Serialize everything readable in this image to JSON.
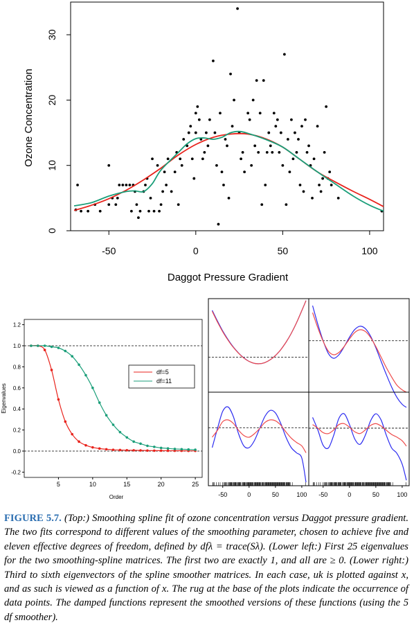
{
  "chart_data": [
    {
      "type": "scatter",
      "xlabel": "Daggot Pressure Gradient",
      "ylabel": "Ozone Concentration",
      "xlim": [
        -72,
        108
      ],
      "ylim": [
        0,
        35
      ],
      "xticks": [
        "-50",
        "0",
        "50",
        "100"
      ],
      "yticks": [
        "0",
        "10",
        "20",
        "30"
      ],
      "points": [
        [
          -69,
          3.2
        ],
        [
          -68,
          7
        ],
        [
          -66,
          3
        ],
        [
          -62,
          3
        ],
        [
          -58,
          4
        ],
        [
          -55,
          3
        ],
        [
          -50,
          4
        ],
        [
          -50,
          10
        ],
        [
          -48,
          5
        ],
        [
          -46,
          4
        ],
        [
          -45,
          5
        ],
        [
          -44,
          7
        ],
        [
          -42,
          7
        ],
        [
          -40,
          7
        ],
        [
          -38,
          7
        ],
        [
          -37,
          3
        ],
        [
          -36,
          7
        ],
        [
          -35,
          6
        ],
        [
          -34,
          4
        ],
        [
          -33,
          2
        ],
        [
          -32,
          3
        ],
        [
          -30,
          6
        ],
        [
          -29,
          7
        ],
        [
          -28,
          8
        ],
        [
          -27,
          3
        ],
        [
          -26,
          5
        ],
        [
          -25,
          11
        ],
        [
          -24,
          3
        ],
        [
          -22,
          10
        ],
        [
          -21,
          3
        ],
        [
          -20,
          4
        ],
        [
          -19,
          6
        ],
        [
          -18,
          9
        ],
        [
          -17,
          7
        ],
        [
          -16,
          11
        ],
        [
          -14,
          6
        ],
        [
          -12,
          9
        ],
        [
          -11,
          12
        ],
        [
          -10,
          4
        ],
        [
          -9,
          11
        ],
        [
          -8,
          10
        ],
        [
          -7,
          14
        ],
        [
          -5,
          13
        ],
        [
          -4,
          15
        ],
        [
          -3,
          16
        ],
        [
          -2,
          11
        ],
        [
          -1,
          8
        ],
        [
          0,
          15
        ],
        [
          0,
          18
        ],
        [
          1,
          19
        ],
        [
          2,
          17
        ],
        [
          3,
          14
        ],
        [
          4,
          11
        ],
        [
          5,
          12
        ],
        [
          6,
          15
        ],
        [
          7,
          13
        ],
        [
          8,
          17
        ],
        [
          10,
          26
        ],
        [
          11,
          15
        ],
        [
          12,
          10
        ],
        [
          13,
          1
        ],
        [
          14,
          18
        ],
        [
          15,
          9
        ],
        [
          16,
          7
        ],
        [
          17,
          14
        ],
        [
          18,
          13
        ],
        [
          19,
          5
        ],
        [
          20,
          24
        ],
        [
          21,
          16
        ],
        [
          22,
          20
        ],
        [
          24,
          34
        ],
        [
          25,
          15
        ],
        [
          26,
          11
        ],
        [
          27,
          12
        ],
        [
          28,
          9
        ],
        [
          30,
          18
        ],
        [
          31,
          17
        ],
        [
          32,
          10
        ],
        [
          33,
          20
        ],
        [
          34,
          13
        ],
        [
          35,
          23
        ],
        [
          36,
          12
        ],
        [
          37,
          18
        ],
        [
          38,
          4
        ],
        [
          39,
          23
        ],
        [
          40,
          7
        ],
        [
          41,
          12
        ],
        [
          42,
          15
        ],
        [
          43,
          13
        ],
        [
          44,
          12
        ],
        [
          45,
          18
        ],
        [
          46,
          16
        ],
        [
          47,
          17
        ],
        [
          48,
          12
        ],
        [
          49,
          15
        ],
        [
          50,
          10
        ],
        [
          51,
          27
        ],
        [
          52,
          4
        ],
        [
          53,
          14
        ],
        [
          54,
          9
        ],
        [
          55,
          17
        ],
        [
          56,
          11
        ],
        [
          57,
          15
        ],
        [
          58,
          12
        ],
        [
          59,
          14
        ],
        [
          60,
          7
        ],
        [
          61,
          16
        ],
        [
          62,
          6
        ],
        [
          63,
          17
        ],
        [
          64,
          12
        ],
        [
          65,
          13
        ],
        [
          66,
          10
        ],
        [
          67,
          5
        ],
        [
          68,
          11
        ],
        [
          70,
          16
        ],
        [
          71,
          7
        ],
        [
          72,
          6
        ],
        [
          73,
          8
        ],
        [
          74,
          12
        ],
        [
          75,
          19
        ],
        [
          76,
          8
        ],
        [
          77,
          9
        ],
        [
          78,
          7
        ],
        [
          82,
          5
        ],
        [
          107,
          3
        ]
      ],
      "series": [
        {
          "name": "df=5",
          "color": "#e8221b",
          "x": [
            -70,
            -60,
            -50,
            -40,
            -30,
            -20,
            -10,
            0,
            10,
            20,
            30,
            40,
            50,
            60,
            70,
            80,
            90,
            100,
            108
          ],
          "y": [
            3.1,
            3.9,
            4.9,
            6.2,
            7.8,
            9.6,
            11.6,
            13.2,
            14.3,
            14.8,
            14.8,
            14.1,
            12.8,
            10.9,
            9.0,
            7.5,
            6.1,
            4.8,
            3.7
          ]
        },
        {
          "name": "df=11",
          "color": "#1a9e79",
          "x": [
            -70,
            -60,
            -50,
            -40,
            -35,
            -30,
            -25,
            -20,
            -10,
            -5,
            0,
            5,
            10,
            15,
            20,
            25,
            30,
            40,
            50,
            60,
            70,
            80,
            90,
            100,
            108
          ],
          "y": [
            3.8,
            4.3,
            5.3,
            6.0,
            6.1,
            6.0,
            7.2,
            9.3,
            12.0,
            13.3,
            14.1,
            14.2,
            14.0,
            14.3,
            15.0,
            15.2,
            14.9,
            14.0,
            12.8,
            10.9,
            9.0,
            7.2,
            5.4,
            3.9,
            3.0
          ]
        }
      ]
    },
    {
      "type": "line",
      "xlabel": "Order",
      "ylabel": "Eigenvalues",
      "xlim": [
        0,
        26
      ],
      "ylim": [
        -0.25,
        1.25
      ],
      "xticks": [
        "5",
        "10",
        "15",
        "20",
        "25"
      ],
      "yticks": [
        "-0.2",
        "0.0",
        "0.2",
        "0.4",
        "0.6",
        "0.8",
        "1.0",
        "1.2"
      ],
      "reference_lines": [
        0,
        1
      ],
      "legend_position": "center-right",
      "series": [
        {
          "name": "df=5",
          "color": "#e8221b",
          "x": [
            1,
            2,
            3,
            4,
            5,
            6,
            7,
            8,
            9,
            10,
            11,
            12,
            13,
            14,
            15,
            16,
            17,
            18,
            19,
            20,
            21,
            22,
            23,
            24,
            25
          ],
          "y": [
            1.0,
            1.0,
            0.96,
            0.77,
            0.49,
            0.28,
            0.16,
            0.09,
            0.055,
            0.035,
            0.024,
            0.017,
            0.012,
            0.01,
            0.008,
            0.007,
            0.006,
            0.005,
            0.004,
            0.004,
            0.003,
            0.003,
            0.003,
            0.002,
            0.002
          ]
        },
        {
          "name": "df=11",
          "color": "#1a9e79",
          "x": [
            1,
            2,
            3,
            4,
            5,
            6,
            7,
            8,
            9,
            10,
            11,
            12,
            13,
            14,
            15,
            16,
            17,
            18,
            19,
            20,
            21,
            22,
            23,
            24,
            25
          ],
          "y": [
            1.0,
            1.0,
            1.0,
            0.99,
            0.98,
            0.95,
            0.9,
            0.82,
            0.72,
            0.6,
            0.46,
            0.34,
            0.25,
            0.18,
            0.13,
            0.09,
            0.07,
            0.05,
            0.04,
            0.03,
            0.025,
            0.02,
            0.018,
            0.015,
            0.013
          ]
        }
      ]
    },
    {
      "type": "line",
      "xticks": [
        "-50",
        "0",
        "50",
        "100"
      ],
      "xlim": [
        -72,
        108
      ],
      "panels": [
        {
          "row": 0,
          "col": 0,
          "order": 3,
          "ylim": [
            -0.16,
            0.32
          ],
          "ref": 0.02,
          "x": [
            -70,
            -60,
            -50,
            -40,
            -30,
            -20,
            -10,
            0,
            10,
            20,
            30,
            40,
            50,
            60,
            70,
            80,
            90,
            100,
            108
          ],
          "blue": [
            0.26,
            0.205,
            0.154,
            0.11,
            0.072,
            0.041,
            0.016,
            -0.002,
            -0.012,
            -0.014,
            -0.008,
            0.006,
            0.028,
            0.058,
            0.096,
            0.142,
            0.196,
            0.258,
            0.31
          ],
          "red": [
            0.255,
            0.2,
            0.15,
            0.107,
            0.07,
            0.04,
            0.015,
            -0.002,
            -0.012,
            -0.014,
            -0.008,
            0.006,
            0.028,
            0.058,
            0.096,
            0.142,
            0.196,
            0.258,
            0.31
          ]
        },
        {
          "row": 0,
          "col": 1,
          "order": 4,
          "ylim": [
            -0.2,
            0.2
          ],
          "ref": 0.02,
          "x": [
            -70,
            -60,
            -50,
            -40,
            -30,
            -20,
            -10,
            0,
            10,
            20,
            30,
            40,
            50,
            60,
            70,
            80,
            90,
            100,
            108
          ],
          "blue": [
            0.17,
            0.09,
            0.02,
            -0.035,
            -0.055,
            -0.04,
            -0.005,
            0.035,
            0.068,
            0.082,
            0.072,
            0.04,
            -0.01,
            -0.068,
            -0.125,
            -0.178,
            -0.222,
            -0.252,
            -0.265
          ],
          "red": [
            0.14,
            0.075,
            0.018,
            -0.025,
            -0.04,
            -0.03,
            -0.004,
            0.028,
            0.055,
            0.067,
            0.06,
            0.034,
            -0.005,
            -0.05,
            -0.095,
            -0.135,
            -0.17,
            -0.19,
            -0.2
          ]
        },
        {
          "row": 1,
          "col": 0,
          "order": 5,
          "ylim": [
            -0.32,
            0.22
          ],
          "ref": 0.015,
          "x": [
            -70,
            -60,
            -50,
            -40,
            -30,
            -20,
            -10,
            0,
            10,
            20,
            30,
            40,
            50,
            60,
            70,
            80,
            90,
            100,
            108
          ],
          "blue": [
            -0.1,
            0.01,
            0.11,
            0.135,
            0.08,
            -0.02,
            -0.09,
            -0.1,
            -0.06,
            0.01,
            0.08,
            0.115,
            0.1,
            0.04,
            -0.04,
            -0.1,
            -0.13,
            -0.16,
            -0.3
          ],
          "red": [
            -0.04,
            0.0,
            0.05,
            0.06,
            0.04,
            0.0,
            -0.03,
            -0.04,
            -0.02,
            0.01,
            0.045,
            0.06,
            0.055,
            0.03,
            -0.01,
            -0.045,
            -0.07,
            -0.09,
            -0.13
          ]
        },
        {
          "row": 1,
          "col": 1,
          "order": 6,
          "ylim": [
            -0.32,
            0.2
          ],
          "ref": 0.0,
          "x": [
            -70,
            -60,
            -50,
            -40,
            -30,
            -20,
            -10,
            0,
            10,
            20,
            30,
            40,
            50,
            60,
            70,
            80,
            90,
            100,
            108
          ],
          "blue": [
            0.06,
            -0.01,
            -0.095,
            -0.11,
            -0.04,
            0.055,
            0.08,
            0.02,
            -0.06,
            -0.09,
            -0.04,
            0.04,
            0.08,
            0.045,
            -0.04,
            -0.11,
            -0.14,
            -0.2,
            -0.29
          ],
          "red": [
            0.02,
            0.0,
            -0.025,
            -0.03,
            -0.01,
            0.02,
            0.025,
            0.005,
            -0.02,
            -0.03,
            -0.01,
            0.015,
            0.025,
            0.012,
            -0.012,
            -0.035,
            -0.05,
            -0.07,
            -0.1
          ]
        }
      ]
    }
  ],
  "caption": {
    "label": "FIGURE 5.7.",
    "text": "(Top:) Smoothing spline fit of ozone concentration versus Daggot pressure gradient. The two fits correspond to different values of the smoothing parameter, chosen to achieve five and eleven effective degrees of freedom, defined by dfλ = trace(Sλ). (Lower left:) First 25 eigenvalues for the two smoothing-spline matrices. The first two are exactly 1, and all are ≥ 0. (Lower right:) Third to sixth eigenvectors of the spline smoother matrices. In each case, uk is plotted against x, and as such is viewed as a function of x. The rug at the base of the plots indicate the occurrence of data points. The damped functions represent the smoothed versions of these functions (using the 5 df smoother)."
  }
}
